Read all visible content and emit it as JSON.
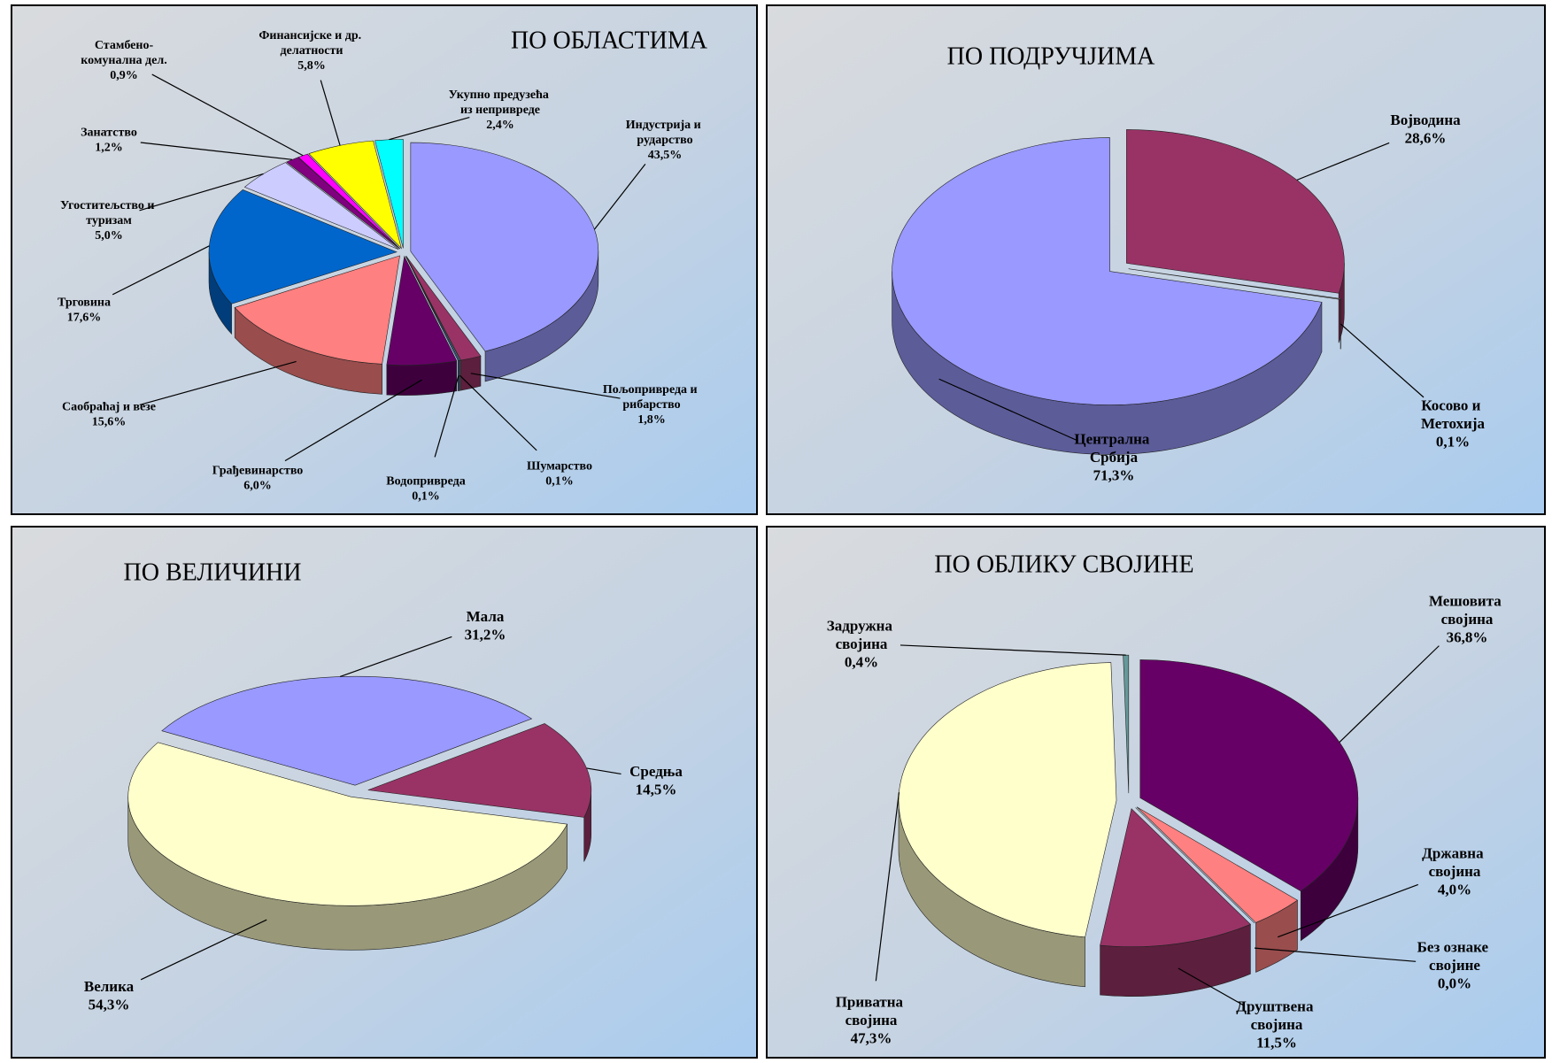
{
  "chart_data": [
    {
      "type": "pie",
      "title": "ПО ОБЛАСТИМА",
      "categories": [
        "Индустрија и рударство",
        "Пољопривреда и рибарство",
        "Шумарство",
        "Водопривреда",
        "Грађевинарство",
        "Саобраћај и везе",
        "Трговина",
        "Угоститељство и туризам",
        "Занатство",
        "Стамбено-комунална дел.",
        "Финансијске и др. делатности",
        "Укупно предузећа из непривреде"
      ],
      "values": [
        43.5,
        1.8,
        0.1,
        0.1,
        6.0,
        15.6,
        17.6,
        5.0,
        1.2,
        0.9,
        5.8,
        2.4
      ],
      "value_labels": [
        "43,5%",
        "1,8%",
        "0,1%",
        "0,1%",
        "6,0%",
        "15,6%",
        "17,6%",
        "5,0%",
        "1,2%",
        "0,9%",
        "5,8%",
        "2,4%"
      ],
      "colors": [
        "#9999ff",
        "#993366",
        "#669999",
        "#3366cc",
        "#660066",
        "#ff8080",
        "#0066cc",
        "#ccccff",
        "#800080",
        "#ff00ff",
        "#ffff00",
        "#00ffff"
      ]
    },
    {
      "type": "pie",
      "title": "ПО ПОДРУЧЈИМА",
      "categories": [
        "Војводина",
        "Косово и Метохија",
        "Централна Србија"
      ],
      "values": [
        28.6,
        0.1,
        71.3
      ],
      "value_labels": [
        "28,6%",
        "0,1%",
        "71,3%"
      ],
      "colors": [
        "#993366",
        "#c0c0c0",
        "#9999ff"
      ]
    },
    {
      "type": "pie",
      "title": "ПО ВЕЛИЧИНИ",
      "categories": [
        "Мала",
        "Средња",
        "Велика"
      ],
      "values": [
        31.2,
        14.5,
        54.3
      ],
      "value_labels": [
        "31,2%",
        "14,5%",
        "54,3%"
      ],
      "colors": [
        "#9999ff",
        "#993366",
        "#ffffcc"
      ]
    },
    {
      "type": "pie",
      "title": "ПО ОБЛИКУ СВОЈИНЕ",
      "categories": [
        "Мешовита својина",
        "Државна својина",
        "Без ознаке својине",
        "Друштвена својина",
        "Приватна својина",
        "Задружна својина"
      ],
      "values": [
        36.8,
        4.0,
        0.0,
        11.5,
        47.3,
        0.4
      ],
      "value_labels": [
        "36,8%",
        "4,0%",
        "0,0%",
        "11,5%",
        "47,3%",
        "0,4%"
      ],
      "colors": [
        "#660066",
        "#ff8080",
        "#3366cc",
        "#993366",
        "#ffffcc",
        "#669999"
      ]
    }
  ]
}
